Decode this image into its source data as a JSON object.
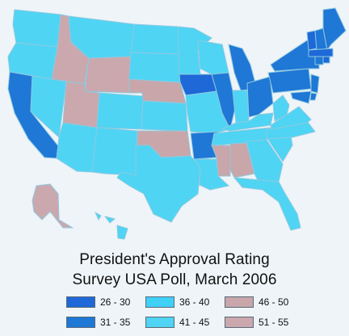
{
  "title": {
    "line1": "President's Approval Rating",
    "line2": "Survey USA Poll, March 2006"
  },
  "legend": [
    {
      "label": "26 - 30",
      "color": "#1e68d8"
    },
    {
      "label": "36 - 40",
      "color": "#3fd0f6"
    },
    {
      "label": "46 - 50",
      "color": "#c8a6aa"
    },
    {
      "label": "31 - 35",
      "color": "#1f77d6"
    },
    {
      "label": "41 - 45",
      "color": "#4fd4f4"
    },
    {
      "label": "51 - 55",
      "color": "#caa8ad"
    }
  ],
  "states": [
    {
      "name": "WA",
      "color": "#4fd4f4"
    },
    {
      "name": "OR",
      "color": "#4fd4f4"
    },
    {
      "name": "CA",
      "color": "#1f77d6"
    },
    {
      "name": "NV",
      "color": "#4fd4f4"
    },
    {
      "name": "ID",
      "color": "#caa8ad"
    },
    {
      "name": "MT",
      "color": "#4fd4f4"
    },
    {
      "name": "WY",
      "color": "#caa8ad"
    },
    {
      "name": "UT",
      "color": "#caa8ad"
    },
    {
      "name": "AZ",
      "color": "#4fd4f4"
    },
    {
      "name": "CO",
      "color": "#4fd4f4"
    },
    {
      "name": "NM",
      "color": "#4fd4f4"
    },
    {
      "name": "ND",
      "color": "#4fd4f4"
    },
    {
      "name": "SD",
      "color": "#4fd4f4"
    },
    {
      "name": "NE",
      "color": "#c8a6aa"
    },
    {
      "name": "KS",
      "color": "#4fd4f4"
    },
    {
      "name": "OK",
      "color": "#c8a6aa"
    },
    {
      "name": "TX",
      "color": "#4fd4f4"
    },
    {
      "name": "MN",
      "color": "#4fd4f4"
    },
    {
      "name": "IA",
      "color": "#1e68d8"
    },
    {
      "name": "MO",
      "color": "#4fd4f4"
    },
    {
      "name": "AR",
      "color": "#1f77d6"
    },
    {
      "name": "LA",
      "color": "#4fd4f4"
    },
    {
      "name": "WI",
      "color": "#4fd4f4"
    },
    {
      "name": "IL",
      "color": "#1f77d6"
    },
    {
      "name": "MI",
      "color": "#1f77d6"
    },
    {
      "name": "IN",
      "color": "#4fd4f4"
    },
    {
      "name": "OH",
      "color": "#1f77d6"
    },
    {
      "name": "KY",
      "color": "#4fd4f4"
    },
    {
      "name": "TN",
      "color": "#4fd4f4"
    },
    {
      "name": "MS",
      "color": "#c8a6aa"
    },
    {
      "name": "AL",
      "color": "#c8a6aa"
    },
    {
      "name": "GA",
      "color": "#4fd4f4"
    },
    {
      "name": "FL",
      "color": "#4fd4f4"
    },
    {
      "name": "SC",
      "color": "#4fd4f4"
    },
    {
      "name": "NC",
      "color": "#4fd4f4"
    },
    {
      "name": "VA",
      "color": "#4fd4f4"
    },
    {
      "name": "WV",
      "color": "#4fd4f4"
    },
    {
      "name": "PA",
      "color": "#1f77d6"
    },
    {
      "name": "NY",
      "color": "#1f77d6"
    },
    {
      "name": "NJ",
      "color": "#1f77d6"
    },
    {
      "name": "DE",
      "color": "#1f77d6"
    },
    {
      "name": "MD",
      "color": "#1f77d6"
    },
    {
      "name": "VT",
      "color": "#1e68d8"
    },
    {
      "name": "NH",
      "color": "#1f77d6"
    },
    {
      "name": "ME",
      "color": "#1f77d6"
    },
    {
      "name": "MA",
      "color": "#1e68d8"
    },
    {
      "name": "CT",
      "color": "#1f77d6"
    },
    {
      "name": "RI",
      "color": "#1e68d8"
    },
    {
      "name": "AK",
      "color": "#caa8ad"
    },
    {
      "name": "HI",
      "color": "#4fd4f4"
    }
  ]
}
